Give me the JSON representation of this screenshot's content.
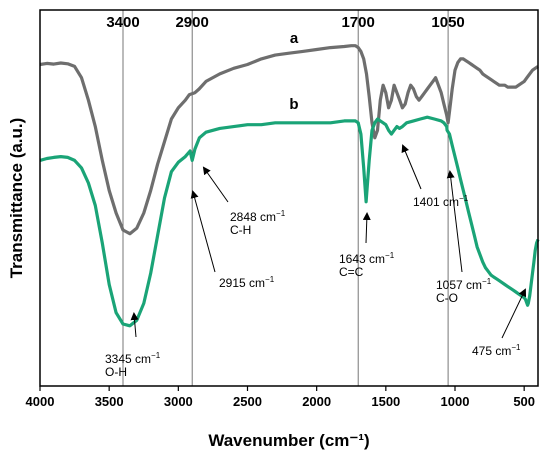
{
  "chart_data": {
    "type": "line",
    "xlabel": "Wavenumber (cm⁻¹)",
    "ylabel": "Transmittance (a.u.)",
    "xlim": [
      4000,
      400
    ],
    "x_reversed": true,
    "xticks": [
      4000,
      3500,
      3000,
      2500,
      2000,
      1500,
      1000,
      500
    ],
    "ylim": [
      0,
      100
    ],
    "grid": false,
    "reference_lines": [
      {
        "x": 3400,
        "label": "3400"
      },
      {
        "x": 2900,
        "label": "2900"
      },
      {
        "x": 1700,
        "label": "1700"
      },
      {
        "x": 1050,
        "label": "1050"
      }
    ],
    "series": [
      {
        "name": "a",
        "color": "#6e6e6e",
        "x": [
          4000,
          3950,
          3900,
          3850,
          3800,
          3750,
          3700,
          3650,
          3600,
          3550,
          3500,
          3450,
          3400,
          3350,
          3300,
          3250,
          3200,
          3150,
          3100,
          3050,
          3000,
          2950,
          2920,
          2880,
          2850,
          2800,
          2700,
          2600,
          2500,
          2400,
          2300,
          2200,
          2100,
          2000,
          1900,
          1800,
          1750,
          1720,
          1700,
          1680,
          1660,
          1640,
          1620,
          1600,
          1580,
          1560,
          1540,
          1520,
          1500,
          1480,
          1460,
          1440,
          1420,
          1400,
          1380,
          1360,
          1340,
          1320,
          1300,
          1280,
          1260,
          1240,
          1220,
          1200,
          1180,
          1160,
          1140,
          1120,
          1100,
          1080,
          1060,
          1050,
          1040,
          1020,
          1000,
          980,
          960,
          940,
          920,
          900,
          880,
          860,
          840,
          820,
          800,
          780,
          760,
          740,
          720,
          700,
          680,
          660,
          640,
          620,
          600,
          580,
          560,
          540,
          520,
          500,
          480,
          460,
          440,
          420,
          400
        ],
        "y": [
          85.5,
          85.8,
          85.6,
          85.9,
          85.7,
          85,
          82,
          76,
          69,
          60,
          52,
          46,
          41.5,
          40.5,
          42,
          46,
          52,
          59,
          65,
          71,
          74,
          76,
          77.5,
          78,
          79,
          81,
          83,
          84.5,
          85.5,
          87,
          88,
          88.5,
          89,
          89.5,
          90,
          90.3,
          90.5,
          90.5,
          90,
          89,
          87,
          83,
          77,
          70,
          66,
          68,
          76,
          80,
          78,
          74,
          76,
          80,
          78,
          76,
          74,
          75,
          78,
          80,
          79,
          77,
          76,
          77,
          78,
          79,
          80,
          81,
          82,
          80,
          78,
          75,
          72,
          70,
          73,
          79,
          84,
          86,
          87,
          87,
          86.5,
          86,
          85.5,
          85,
          84.5,
          84,
          83,
          82.5,
          82,
          81.5,
          81,
          80.5,
          80,
          80,
          80,
          79.5,
          79.5,
          79.5,
          79.5,
          80,
          80.5,
          81,
          82,
          83,
          84,
          84.5,
          85
        ]
      },
      {
        "name": "b",
        "color": "#1aa477",
        "x": [
          4000,
          3950,
          3900,
          3850,
          3800,
          3750,
          3700,
          3650,
          3600,
          3550,
          3500,
          3450,
          3400,
          3350,
          3300,
          3250,
          3200,
          3150,
          3100,
          3050,
          3000,
          2950,
          2915,
          2900,
          2880,
          2848,
          2800,
          2700,
          2600,
          2500,
          2400,
          2300,
          2200,
          2100,
          2000,
          1900,
          1800,
          1750,
          1720,
          1700,
          1680,
          1660,
          1643,
          1620,
          1600,
          1580,
          1560,
          1540,
          1520,
          1500,
          1480,
          1460,
          1440,
          1420,
          1401,
          1380,
          1350,
          1300,
          1250,
          1200,
          1150,
          1100,
          1080,
          1060,
          1057,
          1040,
          1020,
          1000,
          980,
          960,
          940,
          920,
          900,
          880,
          860,
          840,
          820,
          800,
          780,
          760,
          740,
          720,
          700,
          680,
          660,
          640,
          620,
          600,
          580,
          560,
          540,
          520,
          500,
          490,
          480,
          475,
          470,
          460,
          450,
          440,
          430,
          420,
          410,
          400
        ],
        "y": [
          60,
          60.5,
          60.8,
          61,
          60.8,
          60,
          58,
          54,
          48,
          38,
          27,
          19.5,
          16.5,
          16,
          17.5,
          22,
          30,
          40,
          50,
          57,
          59.5,
          61,
          62.5,
          60,
          63,
          66,
          67.5,
          68.5,
          69,
          69.5,
          69.5,
          70,
          70,
          70,
          70,
          70,
          70.5,
          70.5,
          70.5,
          70,
          67,
          58,
          49,
          60,
          68,
          70,
          71,
          70.5,
          70,
          69.5,
          68,
          67,
          68,
          69,
          68.5,
          69,
          70,
          70.5,
          71,
          71.5,
          71,
          70.5,
          70,
          69,
          68,
          67,
          64,
          61,
          58,
          55,
          52,
          49,
          46,
          43,
          40,
          37,
          35,
          33,
          31.5,
          30.5,
          29.5,
          29,
          28.5,
          28,
          27.5,
          27,
          26.5,
          26,
          25.5,
          25,
          24.5,
          24,
          23.5,
          23,
          22,
          21.5,
          22,
          24,
          27,
          30,
          33,
          36,
          38,
          39
        ]
      }
    ],
    "annotations": [
      {
        "base": "3345 cm",
        "sup": "−1",
        "line2": "O-H"
      },
      {
        "base": "2915 cm",
        "sup": "−1",
        "line2": ""
      },
      {
        "base": "2848 cm",
        "sup": "−1",
        "line2": "C-H"
      },
      {
        "base": "1643 cm",
        "sup": "−1",
        "line2": "C=C"
      },
      {
        "base": "1401 cm",
        "sup": "−1",
        "line2": ""
      },
      {
        "base": "1057 cm",
        "sup": "−1",
        "line2": "C-O"
      },
      {
        "base": "475 cm",
        "sup": "−1",
        "line2": ""
      }
    ]
  }
}
